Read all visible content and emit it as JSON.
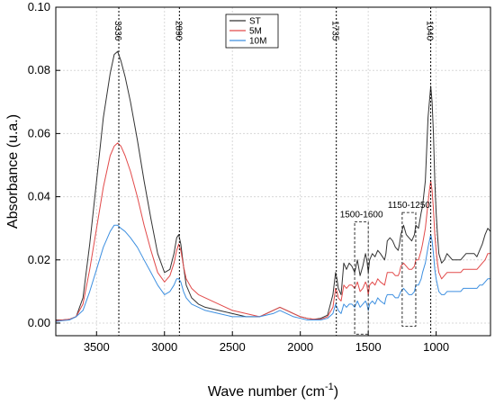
{
  "chart_data": {
    "type": "line",
    "xlabel": "Wave number (cm",
    "xlabel_sup": "-1",
    "xlabel_end": ")",
    "ylabel": "Absorbance (u.a.)",
    "xlim": [
      3800,
      600
    ],
    "ylim": [
      -0.004,
      0.1
    ],
    "x_ticks": [
      3500,
      3000,
      2500,
      2000,
      1500,
      1000
    ],
    "y_ticks": [
      0.0,
      0.02,
      0.04,
      0.06,
      0.08,
      0.1
    ],
    "y_tick_labels": [
      "0.00",
      "0.02",
      "0.04",
      "0.06",
      "0.08",
      "0.10"
    ],
    "grid": true,
    "legend_position": "top-center",
    "series": [
      {
        "name": "ST",
        "color": "#333333",
        "x": [
          3800,
          3750,
          3700,
          3650,
          3600,
          3550,
          3500,
          3450,
          3400,
          3370,
          3345,
          3320,
          3290,
          3250,
          3200,
          3150,
          3100,
          3050,
          3000,
          2960,
          2930,
          2910,
          2895,
          2880,
          2860,
          2840,
          2800,
          2750,
          2700,
          2600,
          2500,
          2400,
          2300,
          2200,
          2150,
          2100,
          2050,
          2000,
          1950,
          1900,
          1850,
          1800,
          1760,
          1740,
          1730,
          1720,
          1700,
          1680,
          1660,
          1640,
          1620,
          1600,
          1580,
          1560,
          1540,
          1520,
          1510,
          1500,
          1490,
          1470,
          1450,
          1430,
          1410,
          1380,
          1370,
          1360,
          1340,
          1320,
          1300,
          1280,
          1270,
          1260,
          1240,
          1220,
          1200,
          1180,
          1160,
          1150,
          1130,
          1110,
          1100,
          1080,
          1060,
          1050,
          1040,
          1030,
          1020,
          1010,
          1000,
          990,
          980,
          960,
          940,
          920,
          900,
          880,
          860,
          840,
          820,
          800,
          780,
          760,
          740,
          720,
          700,
          680,
          660,
          640,
          620,
          600
        ],
        "y": [
          0.001,
          0.001,
          0.0012,
          0.002,
          0.008,
          0.025,
          0.045,
          0.065,
          0.079,
          0.085,
          0.086,
          0.083,
          0.078,
          0.07,
          0.058,
          0.045,
          0.033,
          0.022,
          0.016,
          0.017,
          0.022,
          0.027,
          0.028,
          0.025,
          0.018,
          0.012,
          0.008,
          0.006,
          0.005,
          0.004,
          0.003,
          0.002,
          0.002,
          0.004,
          0.005,
          0.004,
          0.003,
          0.002,
          0.0015,
          0.0012,
          0.0015,
          0.0025,
          0.009,
          0.016,
          0.014,
          0.011,
          0.009,
          0.019,
          0.017,
          0.019,
          0.018,
          0.016,
          0.02,
          0.015,
          0.018,
          0.022,
          0.02,
          0.016,
          0.02,
          0.022,
          0.021,
          0.023,
          0.022,
          0.02,
          0.022,
          0.026,
          0.027,
          0.026,
          0.024,
          0.023,
          0.025,
          0.028,
          0.031,
          0.028,
          0.027,
          0.026,
          0.028,
          0.031,
          0.03,
          0.035,
          0.037,
          0.045,
          0.065,
          0.07,
          0.075,
          0.07,
          0.06,
          0.045,
          0.035,
          0.028,
          0.022,
          0.019,
          0.02,
          0.022,
          0.021,
          0.02,
          0.02,
          0.02,
          0.02,
          0.021,
          0.022,
          0.022,
          0.022,
          0.022,
          0.021,
          0.023,
          0.025,
          0.028,
          0.03,
          0.029
        ]
      },
      {
        "name": "5M",
        "color": "#e24a4a",
        "x": [
          3800,
          3750,
          3700,
          3650,
          3600,
          3550,
          3500,
          3450,
          3400,
          3370,
          3345,
          3320,
          3290,
          3250,
          3200,
          3150,
          3100,
          3050,
          3000,
          2960,
          2930,
          2910,
          2895,
          2880,
          2860,
          2840,
          2800,
          2750,
          2700,
          2600,
          2500,
          2400,
          2300,
          2200,
          2150,
          2100,
          2050,
          2000,
          1950,
          1900,
          1850,
          1800,
          1760,
          1740,
          1730,
          1720,
          1700,
          1680,
          1660,
          1640,
          1620,
          1600,
          1580,
          1560,
          1540,
          1520,
          1510,
          1500,
          1490,
          1470,
          1450,
          1430,
          1410,
          1380,
          1370,
          1360,
          1340,
          1320,
          1300,
          1280,
          1270,
          1260,
          1240,
          1220,
          1200,
          1180,
          1160,
          1150,
          1130,
          1110,
          1100,
          1080,
          1060,
          1050,
          1040,
          1030,
          1020,
          1010,
          1000,
          990,
          980,
          960,
          940,
          920,
          900,
          880,
          860,
          840,
          820,
          800,
          780,
          760,
          740,
          720,
          700,
          680,
          660,
          640,
          620,
          600
        ],
        "y": [
          0.0008,
          0.001,
          0.0012,
          0.002,
          0.006,
          0.017,
          0.03,
          0.043,
          0.053,
          0.056,
          0.057,
          0.056,
          0.053,
          0.048,
          0.04,
          0.031,
          0.023,
          0.016,
          0.013,
          0.015,
          0.019,
          0.023,
          0.025,
          0.023,
          0.018,
          0.014,
          0.011,
          0.009,
          0.008,
          0.006,
          0.004,
          0.003,
          0.002,
          0.004,
          0.005,
          0.004,
          0.003,
          0.002,
          0.0015,
          0.0012,
          0.0012,
          0.002,
          0.005,
          0.011,
          0.01,
          0.008,
          0.007,
          0.012,
          0.011,
          0.012,
          0.012,
          0.011,
          0.013,
          0.01,
          0.011,
          0.013,
          0.012,
          0.009,
          0.012,
          0.013,
          0.012,
          0.014,
          0.013,
          0.012,
          0.014,
          0.016,
          0.016,
          0.016,
          0.015,
          0.015,
          0.016,
          0.018,
          0.019,
          0.018,
          0.017,
          0.017,
          0.018,
          0.02,
          0.02,
          0.023,
          0.025,
          0.03,
          0.038,
          0.042,
          0.045,
          0.042,
          0.036,
          0.028,
          0.023,
          0.019,
          0.016,
          0.014,
          0.015,
          0.016,
          0.016,
          0.016,
          0.016,
          0.016,
          0.016,
          0.017,
          0.017,
          0.017,
          0.017,
          0.017,
          0.017,
          0.018,
          0.019,
          0.02,
          0.022,
          0.022
        ]
      },
      {
        "name": "10M",
        "color": "#3d8fe0",
        "x": [
          3800,
          3750,
          3700,
          3650,
          3600,
          3550,
          3500,
          3450,
          3400,
          3370,
          3345,
          3320,
          3290,
          3250,
          3200,
          3150,
          3100,
          3050,
          3000,
          2960,
          2930,
          2910,
          2895,
          2880,
          2860,
          2840,
          2800,
          2750,
          2700,
          2600,
          2500,
          2400,
          2300,
          2200,
          2150,
          2100,
          2050,
          2000,
          1950,
          1900,
          1850,
          1800,
          1760,
          1740,
          1730,
          1720,
          1700,
          1680,
          1660,
          1640,
          1620,
          1600,
          1580,
          1560,
          1540,
          1520,
          1510,
          1500,
          1490,
          1470,
          1450,
          1430,
          1410,
          1380,
          1370,
          1360,
          1340,
          1320,
          1300,
          1280,
          1270,
          1260,
          1240,
          1220,
          1200,
          1180,
          1160,
          1150,
          1130,
          1110,
          1100,
          1080,
          1060,
          1050,
          1040,
          1030,
          1020,
          1010,
          1000,
          990,
          980,
          960,
          940,
          920,
          900,
          880,
          860,
          840,
          820,
          800,
          780,
          760,
          740,
          720,
          700,
          680,
          660,
          640,
          620,
          600
        ],
        "y": [
          0.0005,
          0.0008,
          0.001,
          0.002,
          0.004,
          0.01,
          0.017,
          0.024,
          0.029,
          0.031,
          0.031,
          0.03,
          0.029,
          0.027,
          0.024,
          0.02,
          0.016,
          0.012,
          0.009,
          0.01,
          0.012,
          0.014,
          0.014,
          0.013,
          0.01,
          0.008,
          0.006,
          0.005,
          0.004,
          0.003,
          0.002,
          0.002,
          0.002,
          0.003,
          0.004,
          0.003,
          0.002,
          0.0015,
          0.001,
          0.001,
          0.001,
          0.0015,
          0.003,
          0.006,
          0.005,
          0.004,
          0.003,
          0.006,
          0.005,
          0.006,
          0.006,
          0.005,
          0.007,
          0.005,
          0.006,
          0.007,
          0.006,
          0.004,
          0.006,
          0.007,
          0.006,
          0.008,
          0.007,
          0.006,
          0.008,
          0.009,
          0.009,
          0.009,
          0.008,
          0.008,
          0.009,
          0.01,
          0.011,
          0.01,
          0.009,
          0.009,
          0.01,
          0.012,
          0.012,
          0.014,
          0.016,
          0.019,
          0.024,
          0.026,
          0.028,
          0.026,
          0.022,
          0.017,
          0.014,
          0.012,
          0.01,
          0.009,
          0.009,
          0.01,
          0.01,
          0.01,
          0.01,
          0.01,
          0.01,
          0.011,
          0.011,
          0.011,
          0.011,
          0.011,
          0.011,
          0.012,
          0.012,
          0.013,
          0.014,
          0.014
        ]
      }
    ],
    "vlines": [
      {
        "x": 3336,
        "label": "3336"
      },
      {
        "x": 2890,
        "label": "2890"
      },
      {
        "x": 1735,
        "label": "1735"
      },
      {
        "x": 1040,
        "label": "1040"
      }
    ],
    "region_boxes": [
      {
        "x1": 1600,
        "x2": 1500,
        "y1": -0.0035,
        "y2": 0.032,
        "label": "1500-1600"
      },
      {
        "x1": 1250,
        "x2": 1150,
        "y1": -0.001,
        "y2": 0.035,
        "label": "1150-1250"
      }
    ]
  }
}
